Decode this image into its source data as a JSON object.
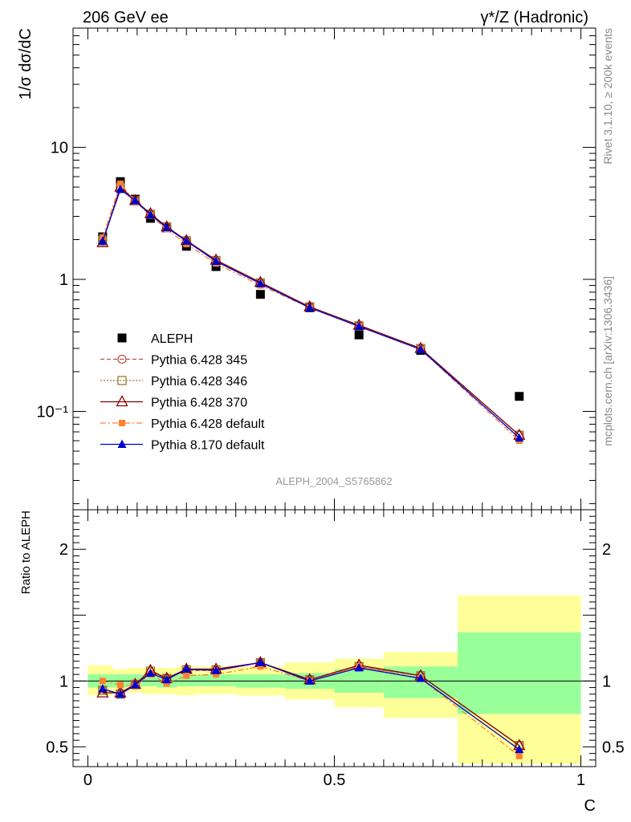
{
  "header": {
    "left_title": "206 GeV ee",
    "right_title": "γ*/Z (Hadronic)"
  },
  "side_labels": {
    "rivet": "Rivet 3.1.10, ≥ 200k events",
    "mcplots": "mcplots.cern.ch [arXiv:1306.3436]"
  },
  "analysis_id": "ALEPH_2004_S5765862",
  "colors": {
    "aleph": "#000000",
    "p345": "#c0504d",
    "p346": "#a0772e",
    "p370": "#8b0000",
    "p6def": "#ff8030",
    "p8def": "#0000cc",
    "band_inner": "#99ff99",
    "band_outer": "#ffff99"
  },
  "chart_data": [
    {
      "type": "scatter",
      "yscale": "log",
      "xlabel": "C",
      "ylabel": "1/σ  dσ/dC",
      "xlim": [
        -0.03,
        1.03
      ],
      "ylim": [
        0.018,
        80
      ],
      "yticks": [
        {
          "v": 10,
          "label": "10"
        },
        {
          "v": 1,
          "label": "1"
        },
        {
          "v": 0.1,
          "label": "10⁻¹"
        }
      ],
      "legend_position": "bottom-left",
      "x": [
        0.03,
        0.066,
        0.096,
        0.127,
        0.16,
        0.2,
        0.26,
        0.35,
        0.45,
        0.55,
        0.675,
        0.875
      ],
      "series": [
        {
          "name": "ALEPH",
          "key": "aleph",
          "marker": "square",
          "line": "none",
          "values": [
            2.1,
            5.5,
            4.05,
            2.9,
            2.45,
            1.78,
            1.25,
            0.77,
            0.61,
            0.38,
            0.29,
            0.13
          ]
        },
        {
          "name": "Pythia 6.428 345",
          "key": "p345",
          "marker": "circle-open",
          "line": "dashed",
          "values": [
            1.95,
            5.0,
            3.95,
            3.1,
            2.5,
            1.95,
            1.38,
            0.94,
            0.62,
            0.445,
            0.3,
            0.066
          ]
        },
        {
          "name": "Pythia 6.428 346",
          "key": "p346",
          "marker": "square-open",
          "line": "dotted",
          "values": [
            1.96,
            4.95,
            3.95,
            3.12,
            2.5,
            1.96,
            1.39,
            0.94,
            0.62,
            0.445,
            0.3,
            0.066
          ]
        },
        {
          "name": "Pythia 6.428 370",
          "key": "p370",
          "marker": "triangle-open",
          "line": "solid",
          "values": [
            1.9,
            5.0,
            3.95,
            3.15,
            2.5,
            1.97,
            1.4,
            0.95,
            0.62,
            0.45,
            0.3,
            0.066
          ]
        },
        {
          "name": "Pythia 6.428 default",
          "key": "p6def",
          "marker": "square-small",
          "line": "dashdot",
          "values": [
            2.08,
            5.3,
            3.9,
            3.05,
            2.4,
            1.85,
            1.32,
            0.9,
            0.61,
            0.44,
            0.295,
            0.06
          ]
        },
        {
          "name": "Pythia 8.170 default",
          "key": "p8def",
          "marker": "triangle",
          "line": "solid",
          "values": [
            1.95,
            4.8,
            3.95,
            3.08,
            2.47,
            1.95,
            1.37,
            0.93,
            0.61,
            0.44,
            0.295,
            0.063
          ]
        }
      ]
    },
    {
      "type": "scatter",
      "ylabel": "Ratio to ALEPH",
      "xlabel": "C",
      "xlim": [
        -0.03,
        1.03
      ],
      "ylim": [
        0.35,
        2.3
      ],
      "yticks": [
        {
          "v": 0.5,
          "label": "0.5"
        },
        {
          "v": 1,
          "label": "1"
        },
        {
          "v": 2,
          "label": "2"
        }
      ],
      "xticks": [
        {
          "v": 0,
          "label": "0"
        },
        {
          "v": 0.5,
          "label": "0.5"
        },
        {
          "v": 1,
          "label": "1"
        }
      ],
      "bands": [
        {
          "x0": 0.0,
          "x1": 0.05,
          "inner": [
            0.95,
            1.05
          ],
          "outer": [
            0.89,
            1.12
          ]
        },
        {
          "x0": 0.05,
          "x1": 0.08,
          "inner": [
            0.95,
            1.05
          ],
          "outer": [
            0.92,
            1.09
          ]
        },
        {
          "x0": 0.08,
          "x1": 0.11,
          "inner": [
            0.96,
            1.05
          ],
          "outer": [
            0.91,
            1.1
          ]
        },
        {
          "x0": 0.11,
          "x1": 0.14,
          "inner": [
            0.96,
            1.05
          ],
          "outer": [
            0.9,
            1.1
          ]
        },
        {
          "x0": 0.14,
          "x1": 0.18,
          "inner": [
            0.95,
            1.05
          ],
          "outer": [
            0.9,
            1.1
          ]
        },
        {
          "x0": 0.18,
          "x1": 0.22,
          "inner": [
            0.96,
            1.05
          ],
          "outer": [
            0.89,
            1.11
          ]
        },
        {
          "x0": 0.22,
          "x1": 0.3,
          "inner": [
            0.96,
            1.05
          ],
          "outer": [
            0.9,
            1.11
          ]
        },
        {
          "x0": 0.3,
          "x1": 0.4,
          "inner": [
            0.95,
            1.05
          ],
          "outer": [
            0.89,
            1.11
          ]
        },
        {
          "x0": 0.4,
          "x1": 0.5,
          "inner": [
            0.94,
            1.06
          ],
          "outer": [
            0.86,
            1.14
          ]
        },
        {
          "x0": 0.5,
          "x1": 0.6,
          "inner": [
            0.91,
            1.09
          ],
          "outer": [
            0.8,
            1.17
          ]
        },
        {
          "x0": 0.6,
          "x1": 0.75,
          "inner": [
            0.87,
            1.11
          ],
          "outer": [
            0.72,
            1.22
          ]
        },
        {
          "x0": 0.75,
          "x1": 1.0,
          "inner": [
            0.75,
            1.37
          ],
          "outer": [
            0.37,
            1.65
          ]
        }
      ],
      "x": [
        0.03,
        0.066,
        0.096,
        0.127,
        0.16,
        0.2,
        0.26,
        0.35,
        0.45,
        0.55,
        0.675,
        0.875
      ],
      "series": [
        {
          "name": "Pythia 6.428 345",
          "key": "p345",
          "marker": "circle-open",
          "line": "dashed",
          "values": [
            0.93,
            0.91,
            0.975,
            1.07,
            1.02,
            1.08,
            1.08,
            1.14,
            1.01,
            1.11,
            1.04,
            0.51
          ]
        },
        {
          "name": "Pythia 6.428 346",
          "key": "p346",
          "marker": "square-open",
          "line": "dotted",
          "values": [
            0.93,
            0.9,
            0.975,
            1.075,
            1.02,
            1.085,
            1.085,
            1.14,
            1.01,
            1.11,
            1.04,
            0.51
          ]
        },
        {
          "name": "Pythia 6.428 370",
          "key": "p370",
          "marker": "triangle-open",
          "line": "solid",
          "values": [
            0.91,
            0.91,
            0.975,
            1.08,
            1.02,
            1.09,
            1.09,
            1.14,
            1.01,
            1.12,
            1.04,
            0.51
          ]
        },
        {
          "name": "Pythia 6.428 default",
          "key": "p6def",
          "marker": "square-small",
          "line": "dashdot",
          "values": [
            1.0,
            0.97,
            0.96,
            1.05,
            0.98,
            1.04,
            1.05,
            1.11,
            1.0,
            1.11,
            1.02,
            0.43
          ]
        },
        {
          "name": "Pythia 8.170 default",
          "key": "p8def",
          "marker": "triangle",
          "line": "solid",
          "values": [
            0.94,
            0.9,
            0.97,
            1.06,
            1.01,
            1.09,
            1.08,
            1.14,
            1.0,
            1.1,
            1.02,
            0.48
          ]
        }
      ]
    }
  ]
}
